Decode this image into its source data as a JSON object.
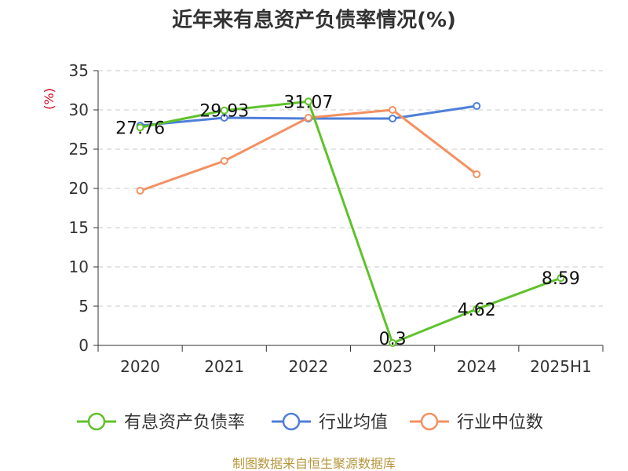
{
  "chart_data": {
    "type": "line",
    "title": "近年来有息资产负债率情况(%)",
    "ylabel": "(%)",
    "xlabel": "",
    "categories": [
      "2020",
      "2021",
      "2022",
      "2023",
      "2024",
      "2025H1"
    ],
    "ylim": [
      0,
      35
    ],
    "yticks": [
      0,
      5,
      10,
      15,
      20,
      25,
      30,
      35
    ],
    "grid": true,
    "legend_position": "bottom",
    "series": [
      {
        "name": "有息资产负债率",
        "color": "#5fc22b",
        "values": [
          27.76,
          29.93,
          31.07,
          0.3,
          4.62,
          8.59
        ],
        "labels": [
          "27.76",
          "29.93",
          "31.07",
          "0.3",
          "4.62",
          "8.59"
        ]
      },
      {
        "name": "行业均值",
        "color": "#4f7fd9",
        "values": [
          28.0,
          29.0,
          28.9,
          28.9,
          30.5,
          null
        ]
      },
      {
        "name": "行业中位数",
        "color": "#f39162",
        "values": [
          19.7,
          23.5,
          29.0,
          30.0,
          21.8,
          null
        ]
      }
    ],
    "source": "制图数据来自恒生聚源数据库"
  }
}
